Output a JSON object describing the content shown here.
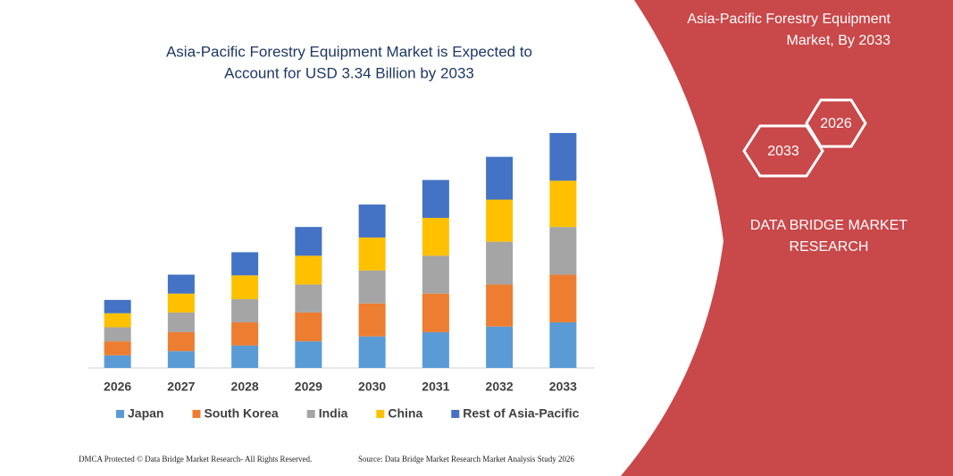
{
  "chart_data": {
    "type": "stacked-bar",
    "title": [
      "Asia-Pacific Forestry Equipment Market is Expected to",
      "Account for USD 3.34 Billion by 2033"
    ],
    "categories": [
      "2026",
      "2027",
      "2028",
      "2029",
      "2030",
      "2031",
      "2032",
      "2033"
    ],
    "series": [
      {
        "name": "Japan",
        "color": "#5b9bd5",
        "values": [
          0.18,
          0.24,
          0.32,
          0.38,
          0.45,
          0.51,
          0.59,
          0.65
        ]
      },
      {
        "name": "South Korea",
        "color": "#ed7d31",
        "values": [
          0.2,
          0.27,
          0.33,
          0.41,
          0.47,
          0.55,
          0.6,
          0.68
        ]
      },
      {
        "name": "India",
        "color": "#a5a5a5",
        "values": [
          0.2,
          0.28,
          0.33,
          0.4,
          0.47,
          0.54,
          0.61,
          0.68
        ]
      },
      {
        "name": "China",
        "color": "#ffc000",
        "values": [
          0.2,
          0.27,
          0.34,
          0.41,
          0.47,
          0.54,
          0.6,
          0.66
        ]
      },
      {
        "name": "Rest of Asia-Pacific",
        "color": "#4472c4",
        "values": [
          0.19,
          0.27,
          0.33,
          0.41,
          0.47,
          0.54,
          0.61,
          0.68
        ]
      }
    ],
    "ylim": [
      0,
      3.4
    ],
    "legend": "bottom"
  },
  "panel": {
    "title": [
      "Asia-Pacific Forestry Equipment",
      "Market, By 2033"
    ],
    "hexagons": [
      "2026",
      "2033"
    ],
    "brand": [
      "DATA BRIDGE MARKET",
      "RESEARCH"
    ]
  },
  "footer": {
    "left": "DMCA Protected © Data Bridge Market Research-  All Rights Reserved.",
    "right": "Source: Data Bridge Market Research  Market Analysis Study 2026"
  }
}
